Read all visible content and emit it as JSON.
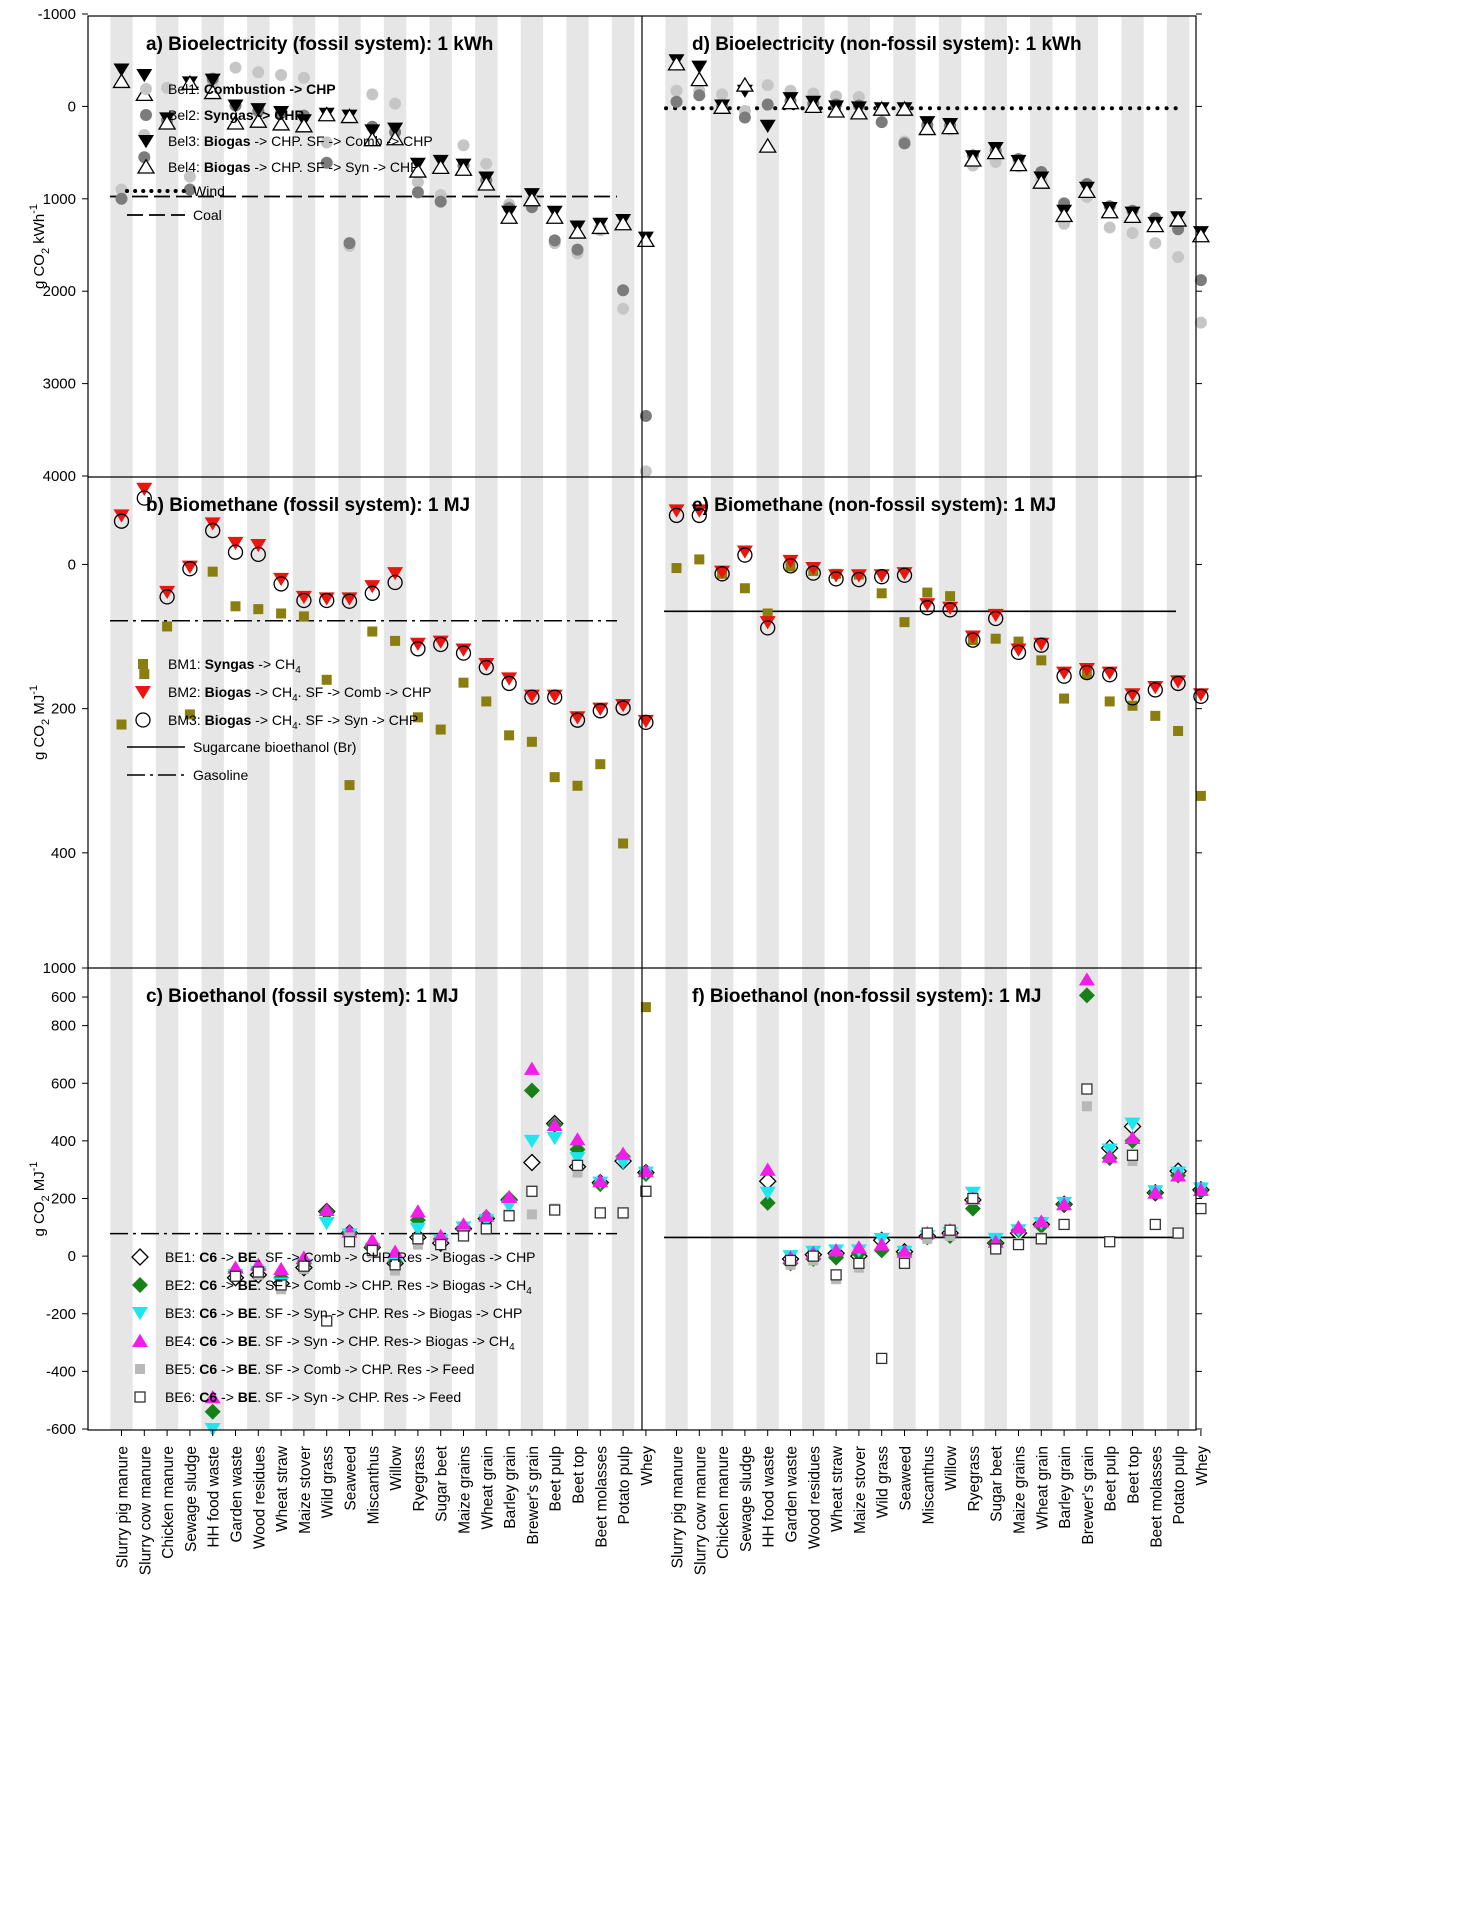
{
  "figure": {
    "categories": [
      "Slurry pig manure",
      "Slurry cow manure",
      "Chicken manure",
      "Sewage sludge",
      "HH food waste",
      "Garden waste",
      "Wood residues",
      "Wheat straw",
      "Maize stover",
      "Wild grass",
      "Seaweed",
      "Miscanthus",
      "Willow",
      "Ryegrass",
      "Sugar beet",
      "Maize grains",
      "Wheat grain",
      "Barley grain",
      "Brewer's grain",
      "Beet pulp",
      "Beet top",
      "Beet molasses",
      "Potato pulp",
      "Whey"
    ],
    "rows": [
      {
        "ylabel": "g CO",
        "ylabel_sub": "2",
        "ylabel_unit": " kWh",
        "ylabel_sup": "-1",
        "ylim": [
          -1000,
          4000
        ],
        "ticks": [
          "-1000",
          "0",
          "1000",
          "2000",
          "3000",
          "4000"
        ]
      },
      {
        "ylabel": "g CO",
        "ylabel_sub": "2",
        "ylabel_unit": " MJ",
        "ylabel_sup": "-1",
        "ylim": [
          -150,
          650
        ],
        "ticks": [
          "0",
          "200",
          "400",
          "600"
        ]
      },
      {
        "ylabel": "g CO",
        "ylabel_sub": "2",
        "ylabel_unit": " MJ",
        "ylabel_sup": "-1",
        "ylim": [
          -600,
          1000
        ],
        "ticks": [
          "-600",
          "-400",
          "-200",
          "0",
          "200",
          "400",
          "600",
          "800",
          "1000"
        ]
      }
    ]
  },
  "chart_data": [
    {
      "type": "scatter",
      "title": "a) Bioelectricity (fossil system): 1 kWh",
      "ylim": [
        -1000,
        4000
      ],
      "legend": [
        {
          "id": "Bel1",
          "prefix": "Bel1: ",
          "bold": "Combustion -> CHP",
          "rest": ""
        },
        {
          "id": "Bel2",
          "prefix": "Bel2: ",
          "bold": "Syngas -> CHP",
          "rest": ""
        },
        {
          "id": "Bel3",
          "prefix": "Bel3: ",
          "bold": "Biogas",
          "rest": " -> CHP. SF -> Comb -> CHP"
        },
        {
          "id": "Bel4",
          "prefix": "Bel4: ",
          "bold": "Biogas",
          "rest": " -> CHP. SF -> Syn -> CHP"
        }
      ],
      "refs": [
        {
          "name": "Wind",
          "value": 0,
          "style": "dot",
          "drawn": false
        },
        {
          "name": "Coal",
          "value": 975,
          "style": "dash",
          "drawn": true
        }
      ],
      "series": [
        {
          "name": "Bel1",
          "values": [
            900,
            310,
            -200,
            760,
            -270,
            -420,
            -370,
            -340,
            -310,
            390,
            1510,
            -130,
            -30,
            820,
            960,
            420,
            620,
            1060,
            1010,
            1480,
            1590,
            1340,
            2190,
            3950
          ]
        },
        {
          "name": "Bel2",
          "values": [
            1000,
            550,
            150,
            900,
            -300,
            -10,
            50,
            70,
            100,
            610,
            1480,
            220,
            280,
            930,
            1030,
            640,
            800,
            1100,
            1090,
            1450,
            1550,
            1320,
            1990,
            3350
          ]
        },
        {
          "name": "Bel3",
          "values": [
            -400,
            -340,
            130,
            -260,
            -290,
            -10,
            30,
            60,
            150,
            80,
            100,
            260,
            240,
            620,
            590,
            630,
            770,
            1140,
            950,
            1140,
            1300,
            1270,
            1230,
            1420
          ]
        },
        {
          "name": "Bel4",
          "values": [
            -270,
            -130,
            180,
            -250,
            -150,
            180,
            160,
            190,
            210,
            90,
            110,
            360,
            350,
            700,
            660,
            680,
            840,
            1200,
            1010,
            1200,
            1360,
            1310,
            1270,
            1450
          ]
        }
      ]
    },
    {
      "type": "scatter",
      "title": "d) Bioelectricity (non-fossil system): 1 kWh",
      "ylim": [
        -1000,
        4000
      ],
      "refs": [
        {
          "name": "Wind",
          "value": 20,
          "style": "dot",
          "drawn": true
        }
      ],
      "series": [
        {
          "name": "Bel1",
          "values": [
            -170,
            -170,
            -130,
            50,
            -230,
            -170,
            -140,
            -110,
            -100,
            40,
            380,
            230,
            250,
            640,
            600,
            650,
            800,
            1270,
            980,
            1310,
            1370,
            1480,
            1630,
            2340
          ]
        },
        {
          "name": "Bel2",
          "values": [
            -50,
            -120,
            0,
            120,
            -20,
            -60,
            -30,
            -20,
            -10,
            170,
            400,
            200,
            210,
            530,
            480,
            570,
            710,
            1050,
            840,
            1080,
            1130,
            1210,
            1330,
            1880
          ]
        },
        {
          "name": "Bel3",
          "values": [
            -500,
            -430,
            -10,
            -170,
            210,
            -90,
            -50,
            0,
            10,
            20,
            20,
            170,
            190,
            540,
            450,
            590,
            770,
            1130,
            880,
            1100,
            1150,
            1260,
            1200,
            1360
          ]
        },
        {
          "name": "Bel4",
          "values": [
            -460,
            -290,
            10,
            -230,
            430,
            -40,
            0,
            50,
            70,
            30,
            30,
            240,
            230,
            580,
            500,
            630,
            820,
            1180,
            920,
            1140,
            1190,
            1290,
            1230,
            1400
          ]
        }
      ]
    },
    {
      "type": "scatter",
      "title": "b) Biomethane (fossil system): 1 MJ",
      "ylim": [
        -150,
        650
      ],
      "legend": [
        {
          "id": "BM1",
          "prefix": "BM1: ",
          "bold": "Syngas",
          "rest": " -> CH",
          "sub": "4"
        },
        {
          "id": "BM2",
          "prefix": "BM2: ",
          "bold": "Biogas",
          "rest": " -> CH",
          "sub": "4",
          "rest2": ". SF -> Comb -> CHP"
        },
        {
          "id": "BM3",
          "prefix": "BM3: ",
          "bold": "Biogas",
          "rest": " -> CH",
          "sub": "4",
          "rest2": ". SF -> Syn -> CHP"
        }
      ],
      "refs": [
        {
          "name": "Sugarcane bioethanol (Br)",
          "value": 65,
          "style": "solid",
          "drawn": false
        },
        {
          "name": "Gasoline",
          "value": 78,
          "style": "dashdot",
          "drawn": true
        }
      ],
      "series": [
        {
          "name": "BM1",
          "values": [
            222,
            152,
            86,
            208,
            10,
            58,
            62,
            68,
            72,
            160,
            306,
            93,
            106,
            212,
            229,
            164,
            190,
            237,
            246,
            295,
            307,
            277,
            387,
            614
          ]
        },
        {
          "name": "BM2",
          "values": [
            -68,
            -105,
            38,
            3,
            -57,
            -30,
            -27,
            20,
            45,
            47,
            47,
            30,
            12,
            110,
            107,
            118,
            138,
            158,
            182,
            182,
            212,
            200,
            195,
            217
          ]
        },
        {
          "name": "BM3",
          "values": [
            -60,
            -92,
            45,
            6,
            -47,
            -17,
            -14,
            27,
            50,
            50,
            51,
            40,
            25,
            117,
            111,
            123,
            143,
            165,
            184,
            184,
            216,
            203,
            199,
            219
          ]
        }
      ]
    },
    {
      "type": "scatter",
      "title": "e) Biomethane (non-fossil system): 1 MJ",
      "ylim": [
        -150,
        650
      ],
      "refs": [
        {
          "name": "Sugarcane bioethanol (Br)",
          "value": 65,
          "style": "solid",
          "drawn": true
        }
      ],
      "series": [
        {
          "name": "BM1",
          "values": [
            5,
            -7,
            13,
            33,
            68,
            3,
            9,
            13,
            14,
            40,
            80,
            39,
            44,
            105,
            103,
            107,
            133,
            186,
            152,
            190,
            196,
            210,
            231,
            321
          ]
        },
        {
          "name": "BM2",
          "values": [
            -75,
            -75,
            10,
            -18,
            80,
            -5,
            5,
            15,
            15,
            15,
            12,
            55,
            60,
            100,
            70,
            118,
            110,
            150,
            145,
            150,
            180,
            170,
            162,
            180
          ]
        },
        {
          "name": "BM3",
          "values": [
            -68,
            -68,
            13,
            -13,
            88,
            2,
            12,
            20,
            21,
            17,
            15,
            60,
            63,
            105,
            75,
            122,
            112,
            155,
            150,
            153,
            185,
            174,
            165,
            183
          ]
        }
      ]
    },
    {
      "type": "scatter",
      "title": "c) Bioethanol (fossil system): 1 MJ",
      "ylim": [
        -600,
        1000
      ],
      "legend": [
        {
          "id": "BE1",
          "prefix": "BE1: ",
          "bold": "C6",
          "mid": " -> ",
          "bold2": "BE",
          "rest": ". SF -> Comb -> CHP. Res -> Biogas -> CHP"
        },
        {
          "id": "BE2",
          "prefix": "BE2: ",
          "bold": "C6",
          "mid": " -> ",
          "bold2": "BE",
          "rest": ". SF -> Comb -> CHP. Res -> Biogas -> CH",
          "sub": "4"
        },
        {
          "id": "BE3",
          "prefix": "BE3: ",
          "bold": "C6",
          "mid": " -> ",
          "bold2": "BE",
          "rest": ". SF -> Syn -> CHP. Res -> Biogas -> CHP"
        },
        {
          "id": "BE4",
          "prefix": "BE4: ",
          "bold": "C6",
          "mid": " -> ",
          "bold2": "BE",
          "rest": ". SF -> Syn -> CHP. Res-> Biogas -> CH",
          "sub": "4"
        },
        {
          "id": "BE5",
          "prefix": "BE5: ",
          "bold": "C6",
          "mid": " -> ",
          "bold2": "BE",
          "rest": ". SF -> Comb -> CHP. Res -> Feed"
        },
        {
          "id": "BE6",
          "prefix": "BE6: ",
          "bold": "C6",
          "mid": " -> ",
          "bold2": "BE",
          "rest": ". SF -> Syn -> CHP. Res -> Feed"
        }
      ],
      "refs": [
        {
          "name": "Sugarcane bioethanol (Br)",
          "value": 65,
          "style": "solid",
          "drawn": false
        },
        {
          "name": "Gasoline",
          "value": 78,
          "style": "dashdot",
          "drawn": true
        }
      ],
      "series": [
        {
          "name": "BE1",
          "values": [
            null,
            null,
            null,
            null,
            null,
            -75,
            -65,
            -95,
            -40,
            155,
            80,
            30,
            -25,
            65,
            45,
            95,
            130,
            195,
            325,
            460,
            310,
            255,
            330,
            290
          ]
        },
        {
          "name": "BE2",
          "values": [
            null,
            null,
            null,
            null,
            -540,
            -55,
            -45,
            -75,
            -25,
            155,
            80,
            30,
            -20,
            125,
            60,
            100,
            135,
            200,
            575,
            455,
            370,
            250,
            345,
            285
          ]
        },
        {
          "name": "BE3",
          "values": [
            null,
            null,
            null,
            null,
            -600,
            -65,
            -55,
            -95,
            -30,
            115,
            75,
            25,
            -25,
            95,
            55,
            100,
            125,
            175,
            400,
            410,
            340,
            255,
            325,
            290
          ]
        },
        {
          "name": "BE4",
          "values": [
            null,
            null,
            null,
            null,
            -490,
            -40,
            -30,
            -45,
            -5,
            160,
            85,
            55,
            15,
            155,
            70,
            110,
            140,
            205,
            650,
            455,
            405,
            260,
            355,
            295
          ]
        },
        {
          "name": "BE5",
          "values": [
            null,
            null,
            null,
            null,
            null,
            -70,
            -65,
            -115,
            -45,
            null,
            65,
            10,
            -50,
            40,
            40,
            75,
            90,
            145,
            145,
            165,
            290,
            150,
            150,
            225
          ]
        },
        {
          "name": "BE6",
          "values": [
            null,
            null,
            null,
            null,
            null,
            -70,
            -55,
            -100,
            -35,
            -225,
            50,
            20,
            -30,
            60,
            40,
            70,
            95,
            140,
            225,
            160,
            315,
            150,
            150,
            225
          ]
        }
      ]
    },
    {
      "type": "scatter",
      "title": "f) Bioethanol (non-fossil system): 1 MJ",
      "ylim": [
        -600,
        1000
      ],
      "refs": [
        {
          "name": "Sugarcane bioethanol (Br)",
          "value": 65,
          "style": "solid",
          "drawn": true
        }
      ],
      "series": [
        {
          "name": "BE1",
          "values": [
            null,
            null,
            null,
            null,
            260,
            -10,
            5,
            10,
            0,
            55,
            15,
            70,
            80,
            195,
            45,
            80,
            110,
            180,
            null,
            375,
            450,
            220,
            295,
            230
          ]
        },
        {
          "name": "BE2",
          "values": [
            null,
            null,
            null,
            null,
            185,
            -25,
            -10,
            -5,
            10,
            20,
            5,
            65,
            70,
            165,
            45,
            90,
            105,
            180,
            905,
            340,
            400,
            220,
            280,
            225
          ]
        },
        {
          "name": "BE3",
          "values": [
            null,
            null,
            null,
            null,
            220,
            0,
            15,
            20,
            20,
            60,
            15,
            70,
            80,
            220,
            60,
            90,
            115,
            185,
            null,
            370,
            460,
            225,
            290,
            235
          ]
        },
        {
          "name": "BE4",
          "values": [
            null,
            null,
            null,
            null,
            300,
            -5,
            10,
            20,
            30,
            40,
            15,
            80,
            90,
            200,
            50,
            100,
            120,
            180,
            960,
            345,
            410,
            220,
            280,
            230
          ]
        },
        {
          "name": "BE5",
          "values": [
            null,
            null,
            null,
            null,
            null,
            -30,
            -15,
            -80,
            -40,
            -355,
            -20,
            60,
            70,
            195,
            25,
            45,
            65,
            110,
            520,
            null,
            330,
            110,
            80,
            165
          ]
        },
        {
          "name": "BE6",
          "values": [
            null,
            null,
            null,
            null,
            null,
            -15,
            0,
            -65,
            -25,
            -355,
            -25,
            80,
            90,
            200,
            25,
            40,
            60,
            110,
            580,
            50,
            350,
            110,
            80,
            165
          ]
        }
      ]
    }
  ]
}
